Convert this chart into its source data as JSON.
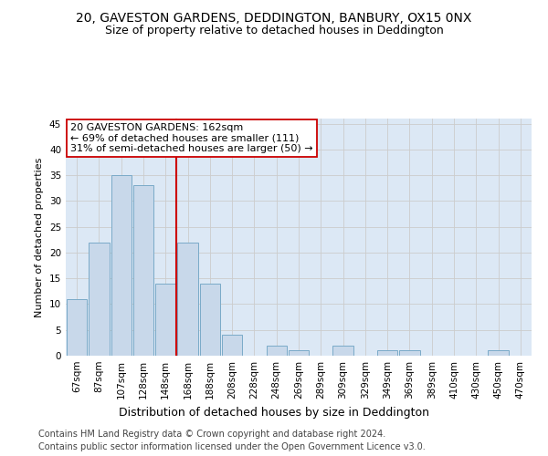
{
  "title": "20, GAVESTON GARDENS, DEDDINGTON, BANBURY, OX15 0NX",
  "subtitle": "Size of property relative to detached houses in Deddington",
  "xlabel": "Distribution of detached houses by size in Deddington",
  "ylabel": "Number of detached properties",
  "bins": [
    "67sqm",
    "87sqm",
    "107sqm",
    "128sqm",
    "148sqm",
    "168sqm",
    "188sqm",
    "208sqm",
    "228sqm",
    "248sqm",
    "269sqm",
    "289sqm",
    "309sqm",
    "329sqm",
    "349sqm",
    "369sqm",
    "389sqm",
    "410sqm",
    "430sqm",
    "450sqm",
    "470sqm"
  ],
  "values": [
    11,
    22,
    35,
    33,
    14,
    22,
    14,
    4,
    0,
    2,
    1,
    0,
    2,
    0,
    1,
    1,
    0,
    0,
    0,
    1,
    0
  ],
  "bar_color": "#c8d8ea",
  "bar_edge_color": "#7aaac8",
  "vline_color": "#cc0000",
  "annotation_line1": "20 GAVESTON GARDENS: 162sqm",
  "annotation_line2": "← 69% of detached houses are smaller (111)",
  "annotation_line3": "31% of semi-detached houses are larger (50) →",
  "annotation_box_color": "#ffffff",
  "annotation_box_edge": "#cc0000",
  "ylim": [
    0,
    46
  ],
  "yticks": [
    0,
    5,
    10,
    15,
    20,
    25,
    30,
    35,
    40,
    45
  ],
  "grid_color": "#cccccc",
  "bg_color": "#dce8f5",
  "footer_line1": "Contains HM Land Registry data © Crown copyright and database right 2024.",
  "footer_line2": "Contains public sector information licensed under the Open Government Licence v3.0.",
  "title_fontsize": 10,
  "subtitle_fontsize": 9,
  "annotation_fontsize": 8,
  "ylabel_fontsize": 8,
  "xlabel_fontsize": 9,
  "tick_fontsize": 7.5,
  "footer_fontsize": 7
}
